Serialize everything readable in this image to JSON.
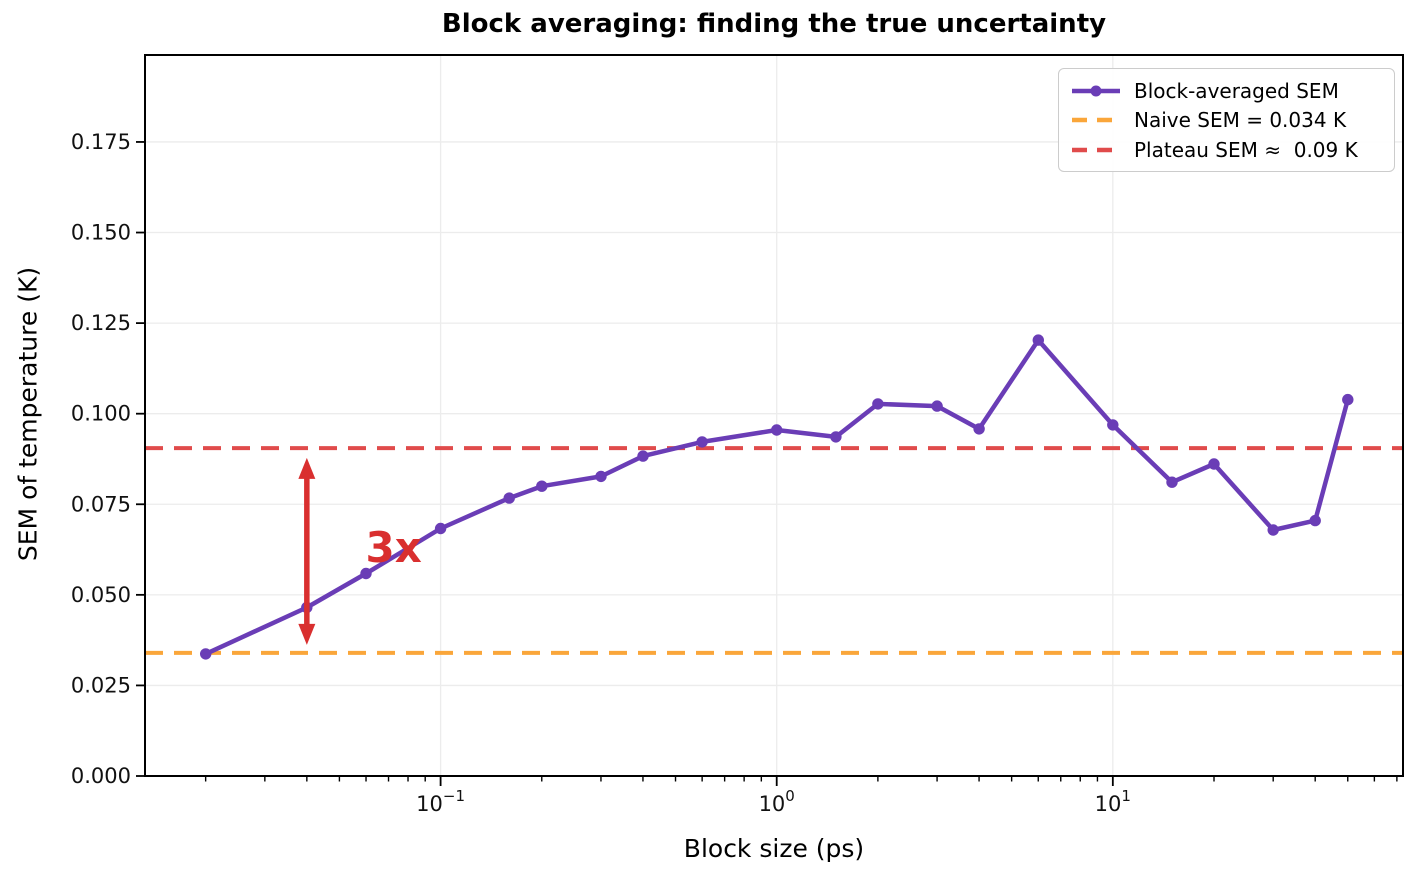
{
  "title": "Block averaging: finding the true uncertainty",
  "chart_data": {
    "type": "line",
    "title": "Block averaging: finding the true uncertainty",
    "xlabel": "Block size (ps)",
    "ylabel": "SEM of temperature (K)",
    "xscale": "log",
    "xlim": [
      0.0132,
      73
    ],
    "ylim": [
      0,
      0.199
    ],
    "grid": true,
    "legend_position": "upper right",
    "yticks": [
      {
        "value": 0.0,
        "label": "0.000"
      },
      {
        "value": 0.025,
        "label": "0.025"
      },
      {
        "value": 0.05,
        "label": "0.050"
      },
      {
        "value": 0.075,
        "label": "0.075"
      },
      {
        "value": 0.1,
        "label": "0.100"
      },
      {
        "value": 0.125,
        "label": "0.125"
      },
      {
        "value": 0.15,
        "label": "0.150"
      },
      {
        "value": 0.175,
        "label": "0.175"
      }
    ],
    "xticks": [
      {
        "value": 0.1,
        "base": "10",
        "exp": "−1"
      },
      {
        "value": 1,
        "base": "10",
        "exp": "0"
      },
      {
        "value": 10,
        "base": "10",
        "exp": "1"
      }
    ],
    "series": [
      {
        "name": "Block-averaged SEM",
        "color": "#6a3db6",
        "style": "solid-with-markers",
        "x": [
          0.02,
          0.04,
          0.06,
          0.1,
          0.16,
          0.2,
          0.3,
          0.4,
          0.6,
          1.0,
          1.5,
          2.0,
          3.0,
          4.0,
          6.0,
          10,
          15,
          20,
          30,
          40,
          50
        ],
        "y": [
          0.0337,
          0.0465,
          0.0559,
          0.0683,
          0.0767,
          0.08,
          0.0827,
          0.0883,
          0.0922,
          0.0955,
          0.0936,
          0.1027,
          0.1021,
          0.0958,
          0.1203,
          0.0969,
          0.0811,
          0.0861,
          0.0679,
          0.0705,
          0.1039
        ]
      }
    ],
    "reference_lines": [
      {
        "name": "Naive SEM = 0.034 K",
        "value": 0.034,
        "color": "#faa63a",
        "style": "dashed"
      },
      {
        "name": "Plateau SEM ≈  0.09 K",
        "value": 0.0905,
        "color": "#e04b4b",
        "style": "dashed"
      }
    ],
    "annotations": [
      {
        "text": "3x",
        "color": "#d92f2f",
        "x": 0.0725,
        "y": 0.0629,
        "arrow": {
          "x": 0.04,
          "y_from": 0.0362,
          "y_to": 0.0878,
          "color": "#d92f2f"
        }
      }
    ],
    "grid_color": "#ececec",
    "spine_color": "#000000"
  }
}
